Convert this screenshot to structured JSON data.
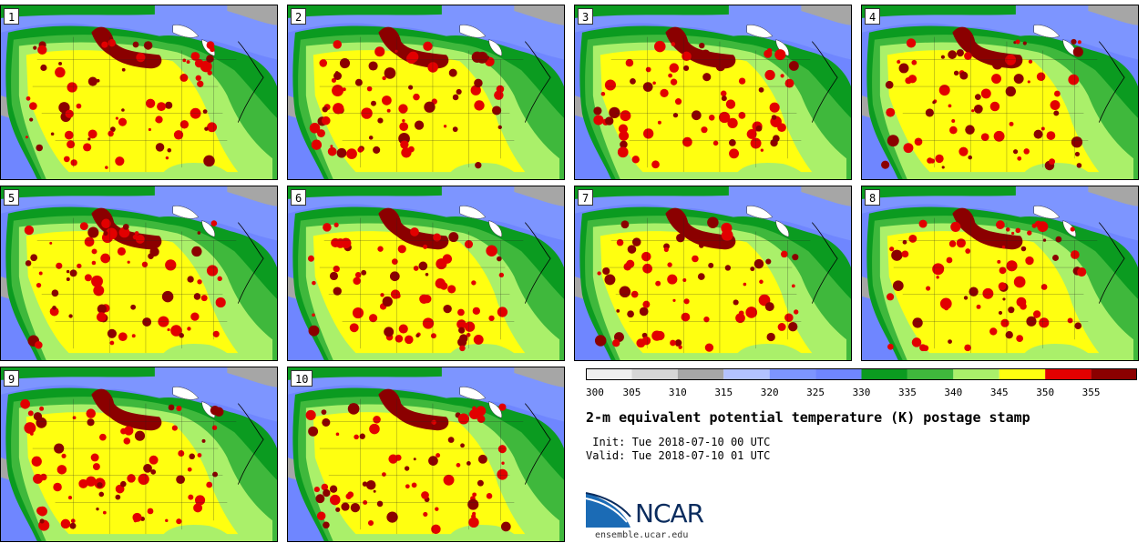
{
  "stamps": [
    {
      "label": "1"
    },
    {
      "label": "2"
    },
    {
      "label": "3"
    },
    {
      "label": "4"
    },
    {
      "label": "5"
    },
    {
      "label": "6"
    },
    {
      "label": "7"
    },
    {
      "label": "8"
    },
    {
      "label": "9"
    },
    {
      "label": "10"
    }
  ],
  "colorbar": {
    "ticks": [
      "300",
      "305",
      "310",
      "315",
      "320",
      "325",
      "330",
      "335",
      "340",
      "345",
      "350",
      "355"
    ],
    "colors": [
      "#efefef",
      "#d6d6d6",
      "#a6a6a6",
      "#b3c2ff",
      "#7d95ff",
      "#6f86ff",
      "#0b9b20",
      "#3fb83c",
      "#aaf06a",
      "#ffff10",
      "#e20000",
      "#8b0000"
    ]
  },
  "title": "2-m equivalent potential temperature (K) postage stamp",
  "init": " Init: Tue 2018-07-10 00 UTC",
  "valid": "Valid: Tue 2018-07-10 01 UTC",
  "logo": {
    "text": "NCAR",
    "site": "ensemble.ucar.edu"
  }
}
